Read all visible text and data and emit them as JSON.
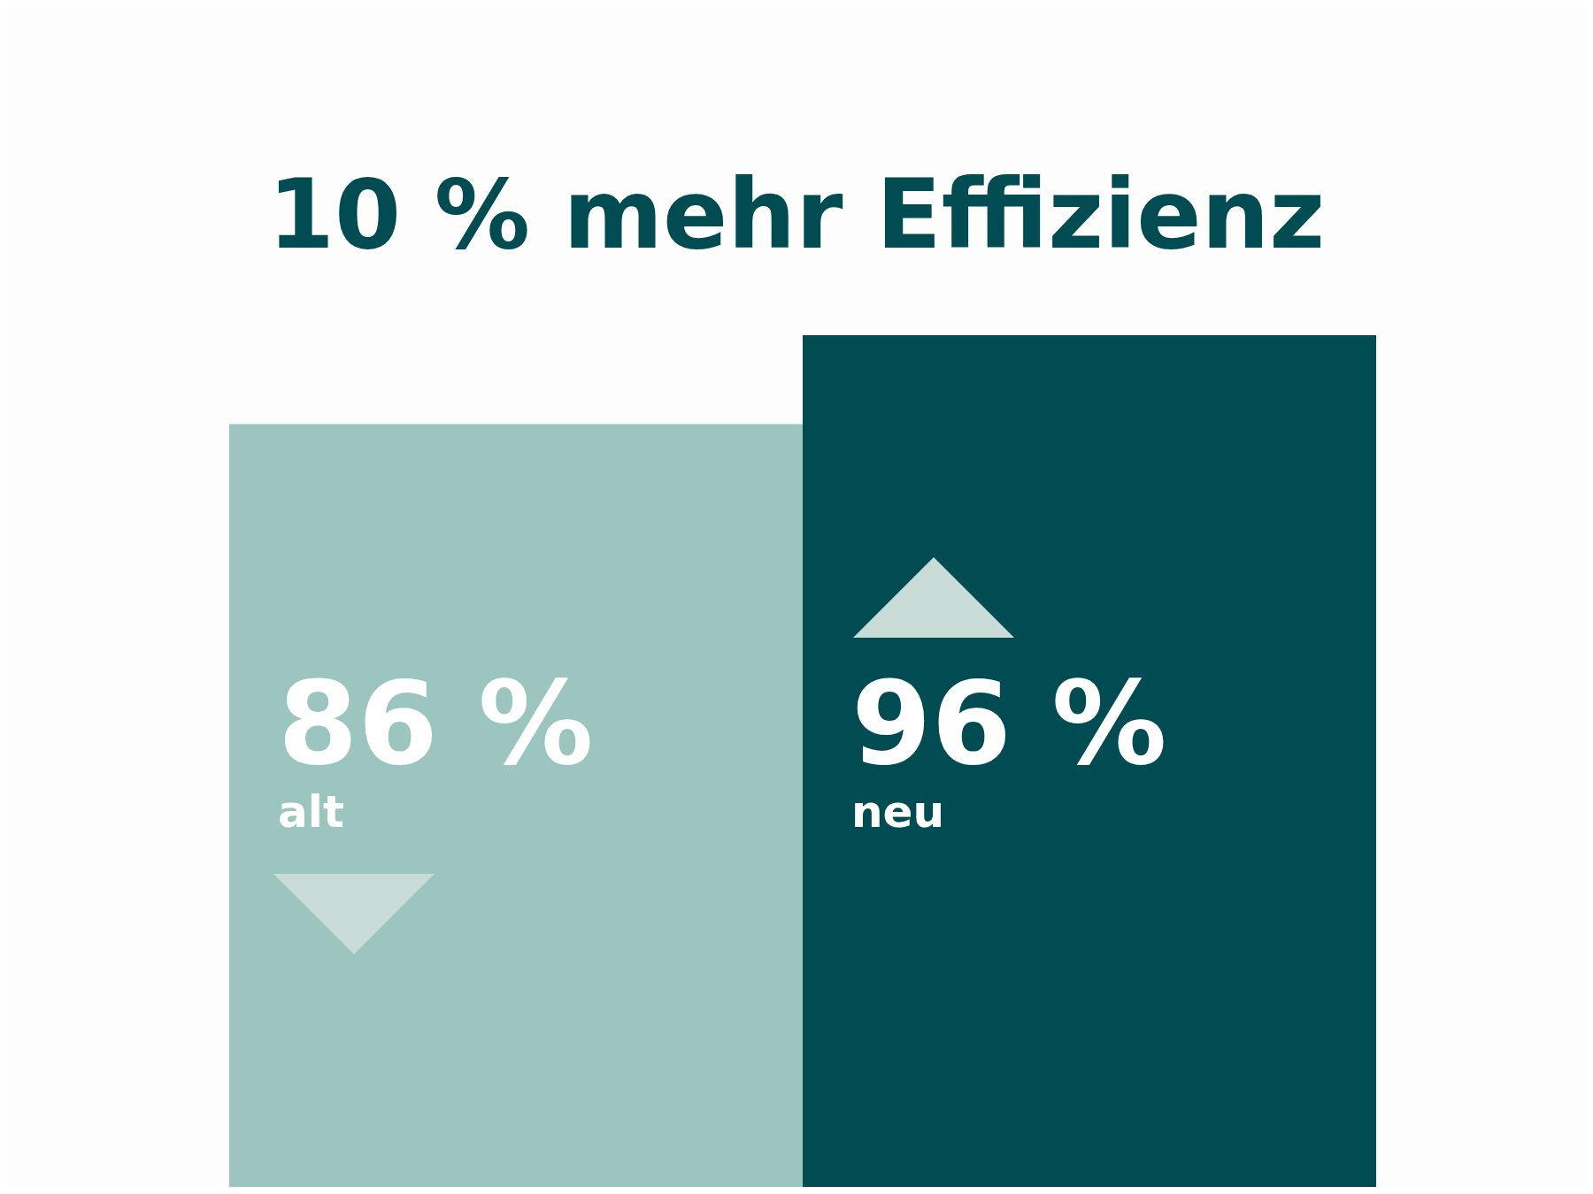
{
  "chart_data": {
    "type": "bar",
    "title": "10 % mehr Effizienz",
    "categories": [
      "alt",
      "neu"
    ],
    "values": [
      86,
      96
    ],
    "value_labels": [
      "86 %",
      "96 %"
    ],
    "colors": [
      "#9dc5c0",
      "#004c52"
    ],
    "tick_labels": false
  }
}
